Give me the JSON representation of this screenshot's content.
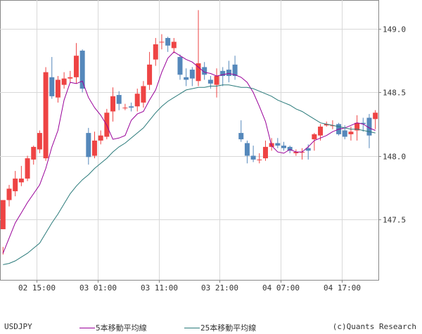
{
  "chart_data": {
    "type": "candlestick",
    "symbol": "USDJPY",
    "copyright": "(c)Quants Research",
    "y_axis_side": "right",
    "ylim": [
      147.02,
      149.23
    ],
    "y_ticks": [
      {
        "value": 149.0,
        "label": "149.0"
      },
      {
        "value": 148.5,
        "label": "148.5"
      },
      {
        "value": 148.0,
        "label": "148.0"
      },
      {
        "value": 147.5,
        "label": "147.5"
      }
    ],
    "x_ticks": [
      {
        "index": 5.5,
        "label": "02 15:00"
      },
      {
        "index": 15.5,
        "label": "03 01:00"
      },
      {
        "index": 25.5,
        "label": "03 11:00"
      },
      {
        "index": 35.5,
        "label": "03 21:00"
      },
      {
        "index": 45.5,
        "label": "04 07:00"
      },
      {
        "index": 55.5,
        "label": "04 17:00"
      }
    ],
    "candles": [
      [
        147.42,
        147.65,
        147.28,
        147.22
      ],
      [
        147.65,
        147.74,
        147.77,
        147.6
      ],
      [
        147.72,
        147.82,
        147.88,
        147.68
      ],
      [
        147.79,
        147.82,
        147.92,
        147.76
      ],
      [
        147.82,
        147.98,
        148.0,
        147.8
      ],
      [
        147.97,
        148.07,
        148.08,
        147.93
      ],
      [
        148.05,
        148.18,
        148.2,
        148.02
      ],
      [
        147.98,
        148.66,
        148.7,
        147.96
      ],
      [
        148.62,
        148.47,
        148.78,
        148.45
      ],
      [
        148.46,
        148.6,
        148.63,
        148.42
      ],
      [
        148.56,
        148.61,
        148.66,
        148.53
      ],
      [
        148.61,
        148.62,
        148.67,
        148.58
      ],
      [
        148.62,
        148.79,
        148.89,
        148.57
      ],
      [
        148.83,
        148.53,
        148.84,
        148.5
      ],
      [
        148.18,
        147.99,
        148.22,
        147.93
      ],
      [
        148.0,
        148.12,
        148.19,
        147.98
      ],
      [
        148.12,
        148.16,
        148.2,
        148.09
      ],
      [
        148.15,
        148.34,
        148.37,
        148.13
      ],
      [
        148.35,
        148.47,
        148.54,
        148.27
      ],
      [
        148.48,
        148.41,
        148.51,
        148.36
      ],
      [
        148.38,
        148.38,
        148.41,
        148.36
      ],
      [
        148.39,
        148.38,
        148.42,
        148.35
      ],
      [
        148.39,
        148.49,
        148.53,
        148.35
      ],
      [
        148.42,
        148.55,
        148.59,
        148.38
      ],
      [
        148.56,
        148.72,
        148.82,
        148.52
      ],
      [
        148.76,
        148.88,
        148.93,
        148.71
      ],
      [
        148.9,
        148.9,
        148.96,
        148.84
      ],
      [
        148.93,
        148.87,
        148.94,
        148.82
      ],
      [
        148.85,
        148.9,
        148.93,
        148.81
      ],
      [
        148.78,
        148.64,
        148.8,
        148.6
      ],
      [
        148.62,
        148.6,
        148.69,
        148.55
      ],
      [
        148.68,
        148.61,
        148.7,
        148.55
      ],
      [
        148.59,
        148.73,
        149.15,
        148.55
      ],
      [
        148.7,
        148.64,
        148.74,
        148.6
      ],
      [
        148.6,
        148.57,
        148.63,
        148.53
      ],
      [
        148.56,
        148.63,
        148.69,
        148.46
      ],
      [
        148.67,
        148.63,
        148.7,
        148.55
      ],
      [
        148.68,
        148.63,
        148.75,
        148.58
      ],
      [
        148.72,
        148.63,
        148.79,
        148.6
      ],
      [
        148.18,
        148.13,
        148.28,
        148.11
      ],
      [
        148.1,
        148.0,
        148.12,
        147.94
      ],
      [
        148.0,
        147.97,
        148.08,
        147.95
      ],
      [
        147.97,
        147.97,
        148.02,
        147.94
      ],
      [
        147.98,
        148.07,
        148.12,
        147.96
      ],
      [
        148.07,
        148.1,
        148.14,
        148.04
      ],
      [
        148.1,
        148.08,
        148.14,
        148.06
      ],
      [
        148.08,
        148.06,
        148.11,
        148.04
      ],
      [
        148.07,
        148.04,
        148.08,
        148.02
      ],
      [
        148.02,
        148.03,
        148.05,
        148.0
      ],
      [
        148.03,
        148.03,
        148.06,
        147.97
      ],
      [
        148.06,
        148.04,
        148.09,
        147.97
      ],
      [
        148.13,
        148.17,
        148.18,
        148.04
      ],
      [
        148.16,
        148.23,
        148.25,
        148.12
      ],
      [
        148.24,
        148.25,
        148.27,
        148.23
      ],
      [
        148.24,
        148.24,
        148.28,
        148.21
      ],
      [
        148.25,
        148.17,
        148.26,
        148.16
      ],
      [
        148.2,
        148.15,
        148.24,
        148.13
      ],
      [
        148.17,
        148.19,
        148.23,
        148.12
      ],
      [
        148.2,
        148.26,
        148.32,
        148.12
      ],
      [
        148.26,
        148.25,
        148.3,
        148.19
      ],
      [
        148.3,
        148.16,
        148.33,
        148.06
      ],
      [
        148.29,
        148.34,
        148.36,
        148.21
      ]
    ],
    "series": [
      {
        "name": "5本移動平均線",
        "color": "#990099",
        "values": [
          147.23,
          147.35,
          147.47,
          147.55,
          147.63,
          147.7,
          147.77,
          147.9,
          148.07,
          148.2,
          148.44,
          148.58,
          148.57,
          148.59,
          148.46,
          148.38,
          148.32,
          148.24,
          148.13,
          148.14,
          148.16,
          148.28,
          148.33,
          148.35,
          148.44,
          148.52,
          148.66,
          148.77,
          148.82,
          148.79,
          148.76,
          148.74,
          148.7,
          148.66,
          148.65,
          148.63,
          148.64,
          148.65,
          148.64,
          148.62,
          148.58,
          148.5,
          148.39,
          148.27,
          148.08,
          148.03,
          148.02,
          148.05,
          148.03,
          148.03,
          148.07,
          148.12,
          148.14,
          148.16,
          148.19,
          148.21,
          148.22,
          148.24,
          148.26,
          148.25,
          148.22,
          148.2
        ]
      },
      {
        "name": "25本移動平均線",
        "color": "#2a7a7a",
        "values": [
          147.14,
          147.15,
          147.17,
          147.2,
          147.23,
          147.27,
          147.31,
          147.39,
          147.47,
          147.54,
          147.62,
          147.7,
          147.76,
          147.81,
          147.85,
          147.9,
          147.94,
          147.98,
          148.03,
          148.07,
          148.1,
          148.14,
          148.18,
          148.22,
          148.28,
          148.34,
          148.39,
          148.43,
          148.46,
          148.49,
          148.52,
          148.53,
          148.54,
          148.54,
          148.55,
          148.55,
          148.56,
          148.56,
          148.55,
          148.54,
          148.54,
          148.53,
          148.51,
          148.49,
          148.47,
          148.44,
          148.42,
          148.4,
          148.37,
          148.35,
          148.32,
          148.29,
          148.26,
          148.25,
          148.24,
          148.23,
          148.22,
          148.21,
          148.21,
          148.2,
          148.19,
          148.18
        ]
      }
    ],
    "colors": {
      "up_candle": "#ee4444",
      "down_candle": "#5588bb",
      "grid": "#d8d8d8",
      "axis": "#888888",
      "text": "#333333"
    },
    "grid": true
  }
}
